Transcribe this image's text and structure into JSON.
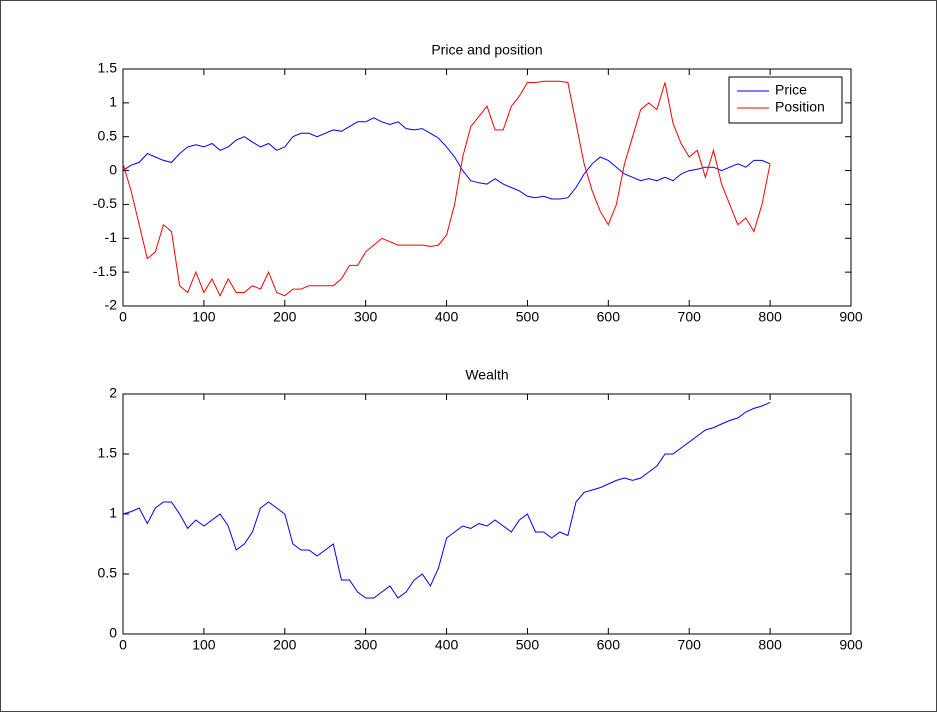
{
  "chart_data": [
    {
      "type": "line",
      "title": "Price and position",
      "x": [
        0,
        10,
        20,
        30,
        40,
        50,
        60,
        70,
        80,
        90,
        100,
        110,
        120,
        130,
        140,
        150,
        160,
        170,
        180,
        190,
        200,
        210,
        220,
        230,
        240,
        250,
        260,
        270,
        280,
        290,
        300,
        310,
        320,
        330,
        340,
        350,
        360,
        370,
        380,
        390,
        400,
        410,
        420,
        430,
        440,
        450,
        460,
        470,
        480,
        490,
        500,
        510,
        520,
        530,
        540,
        550,
        560,
        570,
        580,
        590,
        600,
        610,
        620,
        630,
        640,
        650,
        660,
        670,
        680,
        690,
        700,
        710,
        720,
        730,
        740,
        750,
        760,
        770,
        780,
        790,
        800
      ],
      "series": [
        {
          "name": "Price",
          "color": "#0000ff",
          "values": [
            0,
            0.08,
            0.12,
            0.25,
            0.2,
            0.15,
            0.12,
            0.25,
            0.35,
            0.38,
            0.35,
            0.4,
            0.3,
            0.35,
            0.45,
            0.5,
            0.42,
            0.35,
            0.4,
            0.3,
            0.35,
            0.5,
            0.55,
            0.55,
            0.5,
            0.55,
            0.6,
            0.58,
            0.65,
            0.72,
            0.72,
            0.78,
            0.72,
            0.68,
            0.72,
            0.62,
            0.6,
            0.62,
            0.55,
            0.48,
            0.35,
            0.2,
            0,
            -0.15,
            -0.18,
            -0.2,
            -0.12,
            -0.2,
            -0.25,
            -0.3,
            -0.38,
            -0.4,
            -0.38,
            -0.42,
            -0.42,
            -0.4,
            -0.25,
            -0.05,
            0.1,
            0.2,
            0.15,
            0.05,
            -0.05,
            -0.1,
            -0.15,
            -0.12,
            -0.15,
            -0.1,
            -0.15,
            -0.05,
            0,
            0.02,
            0.05,
            0.05,
            0,
            0.05,
            0.1,
            0.05,
            0.15,
            0.15,
            0.1
          ]
        },
        {
          "name": "Position",
          "color": "#ff0000",
          "values": [
            0.1,
            -0.3,
            -0.8,
            -1.3,
            -1.2,
            -0.8,
            -0.9,
            -1.7,
            -1.8,
            -1.5,
            -1.8,
            -1.6,
            -1.85,
            -1.6,
            -1.8,
            -1.8,
            -1.7,
            -1.75,
            -1.5,
            -1.8,
            -1.85,
            -1.75,
            -1.75,
            -1.7,
            -1.7,
            -1.7,
            -1.7,
            -1.6,
            -1.4,
            -1.4,
            -1.2,
            -1.1,
            -1,
            -1.05,
            -1.1,
            -1.1,
            -1.1,
            -1.1,
            -1.12,
            -1.1,
            -0.95,
            -0.5,
            0.2,
            0.65,
            0.8,
            0.95,
            0.6,
            0.6,
            0.95,
            1.1,
            1.3,
            1.3,
            1.32,
            1.32,
            1.32,
            1.3,
            0.7,
            0.1,
            -0.3,
            -0.6,
            -0.8,
            -0.5,
            0.1,
            0.5,
            0.9,
            1,
            0.9,
            1.3,
            0.7,
            0.4,
            0.2,
            0.3,
            -0.1,
            0.3,
            -0.2,
            -0.5,
            -0.8,
            -0.7,
            -0.9,
            -0.5,
            0.1
          ]
        }
      ],
      "xlim": [
        0,
        900
      ],
      "xticks": [
        0,
        100,
        200,
        300,
        400,
        500,
        600,
        700,
        800,
        900
      ],
      "ylim": [
        -2,
        1.5
      ],
      "yticks": [
        -2,
        -1.5,
        -1,
        -0.5,
        0,
        0.5,
        1,
        1.5
      ],
      "legend": "upper right"
    },
    {
      "type": "line",
      "title": "Wealth",
      "x": [
        0,
        10,
        20,
        30,
        40,
        50,
        60,
        70,
        80,
        90,
        100,
        110,
        120,
        130,
        140,
        150,
        160,
        170,
        180,
        190,
        200,
        210,
        220,
        230,
        240,
        250,
        260,
        270,
        280,
        290,
        300,
        310,
        320,
        330,
        340,
        350,
        360,
        370,
        380,
        390,
        400,
        410,
        420,
        430,
        440,
        450,
        460,
        470,
        480,
        490,
        500,
        510,
        520,
        530,
        540,
        550,
        560,
        570,
        580,
        590,
        600,
        610,
        620,
        630,
        640,
        650,
        660,
        670,
        680,
        690,
        700,
        710,
        720,
        730,
        740,
        750,
        760,
        770,
        780,
        790,
        800
      ],
      "series": [
        {
          "color": "#0000ff",
          "values": [
            1,
            1.02,
            1.05,
            0.92,
            1.05,
            1.1,
            1.1,
            1,
            0.88,
            0.95,
            0.9,
            0.95,
            1,
            0.9,
            0.7,
            0.75,
            0.85,
            1.05,
            1.1,
            1.05,
            1,
            0.75,
            0.7,
            0.7,
            0.65,
            0.7,
            0.75,
            0.45,
            0.45,
            0.35,
            0.3,
            0.3,
            0.35,
            0.4,
            0.3,
            0.35,
            0.45,
            0.5,
            0.4,
            0.55,
            0.8,
            0.85,
            0.9,
            0.88,
            0.92,
            0.9,
            0.95,
            0.9,
            0.85,
            0.95,
            1,
            0.85,
            0.85,
            0.8,
            0.85,
            0.82,
            1.1,
            1.18,
            1.2,
            1.22,
            1.25,
            1.28,
            1.3,
            1.28,
            1.3,
            1.35,
            1.4,
            1.5,
            1.5,
            1.55,
            1.6,
            1.65,
            1.7,
            1.72,
            1.75,
            1.78,
            1.8,
            1.85,
            1.88,
            1.9,
            1.93
          ]
        }
      ],
      "xlim": [
        0,
        900
      ],
      "xticks": [
        0,
        100,
        200,
        300,
        400,
        500,
        600,
        700,
        800,
        900
      ],
      "ylim": [
        0,
        2
      ],
      "yticks": [
        0,
        0.5,
        1,
        1.5,
        2
      ]
    }
  ]
}
